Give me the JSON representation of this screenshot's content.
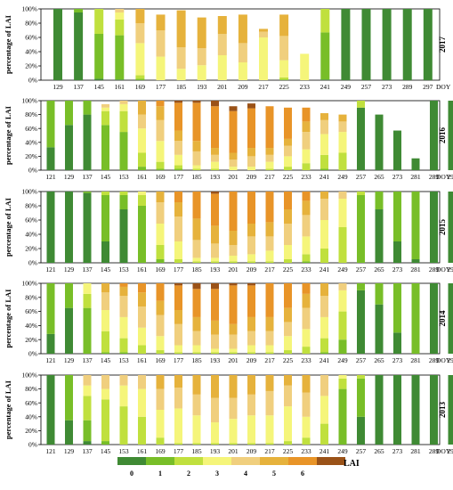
{
  "legend": {
    "colors": [
      "#3f8a34",
      "#78be28",
      "#c0e03e",
      "#f5f57a",
      "#f0cf7e",
      "#e6b23c",
      "#e89428",
      "#9a5218"
    ],
    "labels": [
      "0",
      "1",
      "2",
      "3",
      "4",
      "5",
      "6"
    ],
    "title": "LAI"
  },
  "chart_data": [
    {
      "type": "bar",
      "stacked": true,
      "year": "2017",
      "ylabel": "percentage of LAI",
      "xlabel": "DOY",
      "ylim": [
        0,
        100
      ],
      "yticks": [
        "0%",
        "20%",
        "40%",
        "60%",
        "80%",
        "100%"
      ],
      "categories": [
        "129",
        "137",
        "145",
        "161",
        "169",
        "177",
        "185",
        "193",
        "201",
        "209",
        "217",
        "225",
        "233",
        "241",
        "249",
        "257",
        "273",
        "289",
        "297"
      ],
      "series": [
        {
          "values": [
            100,
            95,
            2,
            1,
            0,
            0,
            0,
            0,
            0,
            0,
            0,
            0,
            0,
            1,
            100,
            100,
            100,
            100,
            100
          ]
        },
        {
          "values": [
            0,
            5,
            63,
            62,
            2,
            0,
            0,
            0,
            0,
            0,
            0,
            1,
            0,
            66,
            0,
            0,
            0,
            0,
            0
          ]
        },
        {
          "values": [
            0,
            0,
            35,
            22,
            5,
            0,
            0,
            0,
            0,
            0,
            0,
            3,
            0,
            33,
            0,
            0,
            0,
            0,
            0
          ]
        },
        {
          "values": [
            0,
            0,
            0,
            10,
            45,
            33,
            16,
            21,
            35,
            25,
            60,
            24,
            37,
            0,
            0,
            0,
            0,
            0,
            0
          ]
        },
        {
          "values": [
            0,
            0,
            0,
            5,
            28,
            37,
            30,
            24,
            30,
            27,
            8,
            34,
            0,
            0,
            0,
            0,
            0,
            0,
            0
          ]
        },
        {
          "values": [
            0,
            0,
            0,
            0,
            20,
            22,
            52,
            43,
            25,
            40,
            4,
            30,
            0,
            0,
            0,
            0,
            0,
            0,
            0
          ]
        },
        {
          "values": [
            0,
            0,
            0,
            0,
            0,
            0,
            0,
            0,
            0,
            0,
            0,
            0,
            0,
            0,
            0,
            0,
            0,
            0,
            0
          ]
        },
        {
          "values": [
            0,
            0,
            0,
            0,
            0,
            0,
            0,
            0,
            0,
            0,
            0,
            0,
            0,
            0,
            0,
            0,
            0,
            0,
            0
          ]
        }
      ],
      "top_white": [
        0,
        0,
        0,
        0,
        10,
        8,
        2,
        12,
        10,
        8,
        28,
        8,
        13,
        0,
        0,
        0,
        0,
        0,
        0
      ]
    },
    {
      "type": "bar",
      "stacked": true,
      "year": "2016",
      "ylabel": "percentage of LAI",
      "xlabel": "DOY",
      "ylim": [
        0,
        100
      ],
      "yticks": [
        "0%",
        "20%",
        "40%",
        "60%",
        "80%",
        "100%"
      ],
      "categories": [
        "121",
        "129",
        "137",
        "145",
        "153",
        "161",
        "169",
        "177",
        "185",
        "193",
        "201",
        "209",
        "217",
        "225",
        "233",
        "241",
        "249",
        "257",
        "265",
        "273",
        "281",
        "289",
        "297"
      ],
      "series": [
        {
          "values": [
            33,
            65,
            80,
            0,
            0,
            0,
            0,
            0,
            0,
            0,
            0,
            0,
            0,
            0,
            0,
            0,
            0,
            90,
            80,
            57,
            17,
            100,
            100
          ]
        },
        {
          "values": [
            67,
            35,
            20,
            65,
            55,
            5,
            2,
            2,
            0,
            0,
            0,
            0,
            0,
            0,
            0,
            2,
            0,
            0,
            0,
            0,
            0,
            0,
            0
          ]
        },
        {
          "values": [
            0,
            0,
            0,
            20,
            30,
            20,
            10,
            5,
            2,
            2,
            0,
            0,
            2,
            5,
            10,
            20,
            25,
            10,
            0,
            0,
            0,
            0,
            0
          ]
        },
        {
          "values": [
            0,
            0,
            0,
            5,
            10,
            35,
            30,
            15,
            5,
            10,
            5,
            5,
            10,
            15,
            20,
            30,
            30,
            0,
            0,
            0,
            0,
            0,
            0
          ]
        },
        {
          "values": [
            0,
            0,
            0,
            5,
            5,
            20,
            30,
            20,
            20,
            10,
            10,
            15,
            10,
            15,
            25,
            20,
            15,
            0,
            0,
            0,
            0,
            0,
            0
          ]
        },
        {
          "values": [
            0,
            0,
            0,
            0,
            0,
            20,
            20,
            15,
            15,
            10,
            10,
            12,
            10,
            10,
            15,
            10,
            10,
            0,
            0,
            0,
            0,
            0,
            0
          ]
        },
        {
          "values": [
            0,
            0,
            0,
            0,
            0,
            0,
            8,
            40,
            55,
            60,
            60,
            57,
            60,
            45,
            20,
            0,
            0,
            0,
            0,
            0,
            0,
            0,
            0
          ]
        },
        {
          "values": [
            0,
            0,
            0,
            0,
            0,
            0,
            0,
            3,
            3,
            8,
            7,
            7,
            0,
            0,
            0,
            0,
            0,
            0,
            0,
            0,
            0,
            0,
            0
          ]
        }
      ]
    },
    {
      "type": "bar",
      "stacked": true,
      "year": "2015",
      "ylabel": "percentage of LAI",
      "xlabel": "DOY",
      "ylim": [
        0,
        100
      ],
      "yticks": [
        "0%",
        "20%",
        "40%",
        "60%",
        "80%",
        "100%"
      ],
      "categories": [
        "121",
        "129",
        "137",
        "145",
        "153",
        "161",
        "169",
        "177",
        "185",
        "193",
        "201",
        "209",
        "217",
        "225",
        "233",
        "241",
        "249",
        "257",
        "265",
        "273",
        "281",
        "289",
        "297"
      ],
      "series": [
        {
          "values": [
            100,
            100,
            98,
            30,
            75,
            0,
            0,
            0,
            0,
            0,
            0,
            0,
            0,
            0,
            0,
            0,
            0,
            0,
            75,
            30,
            5,
            100,
            100
          ]
        },
        {
          "values": [
            0,
            0,
            2,
            65,
            20,
            80,
            5,
            0,
            0,
            0,
            0,
            0,
            0,
            0,
            2,
            0,
            0,
            95,
            25,
            70,
            95,
            0,
            0
          ]
        },
        {
          "values": [
            0,
            0,
            0,
            5,
            5,
            15,
            20,
            5,
            2,
            2,
            2,
            2,
            2,
            5,
            10,
            20,
            50,
            5,
            0,
            0,
            0,
            0,
            0
          ]
        },
        {
          "values": [
            0,
            0,
            0,
            0,
            0,
            5,
            30,
            25,
            5,
            5,
            8,
            10,
            15,
            20,
            25,
            40,
            40,
            0,
            0,
            0,
            0,
            0,
            0
          ]
        },
        {
          "values": [
            0,
            0,
            0,
            0,
            0,
            0,
            30,
            35,
            25,
            20,
            15,
            25,
            20,
            30,
            30,
            30,
            10,
            0,
            0,
            0,
            0,
            0,
            0
          ]
        },
        {
          "values": [
            0,
            0,
            0,
            0,
            0,
            0,
            15,
            20,
            30,
            25,
            20,
            18,
            20,
            20,
            20,
            10,
            0,
            0,
            0,
            0,
            0,
            0,
            0
          ]
        },
        {
          "values": [
            0,
            0,
            0,
            0,
            0,
            0,
            0,
            15,
            38,
            45,
            55,
            45,
            43,
            25,
            13,
            0,
            0,
            0,
            0,
            0,
            0,
            0,
            0
          ]
        },
        {
          "values": [
            0,
            0,
            0,
            0,
            0,
            0,
            0,
            0,
            0,
            3,
            0,
            0,
            0,
            0,
            0,
            0,
            0,
            0,
            0,
            0,
            0,
            0,
            0
          ]
        }
      ]
    },
    {
      "type": "bar",
      "stacked": true,
      "year": "2014",
      "ylabel": "percentage of LAI",
      "xlabel": "DOY",
      "ylim": [
        0,
        100
      ],
      "yticks": [
        "0%",
        "20%",
        "40%",
        "60%",
        "80%",
        "100%"
      ],
      "categories": [
        "121",
        "129",
        "137",
        "145",
        "153",
        "161",
        "169",
        "177",
        "185",
        "193",
        "201",
        "209",
        "217",
        "225",
        "233",
        "241",
        "249",
        "257",
        "265",
        "273",
        "281",
        "289",
        "297"
      ],
      "series": [
        {
          "values": [
            28,
            65,
            0,
            0,
            0,
            0,
            0,
            0,
            0,
            0,
            0,
            0,
            0,
            0,
            0,
            0,
            0,
            90,
            70,
            30,
            0,
            100,
            100
          ]
        },
        {
          "values": [
            72,
            35,
            65,
            2,
            2,
            0,
            0,
            0,
            0,
            0,
            0,
            0,
            0,
            0,
            0,
            2,
            20,
            10,
            30,
            70,
            100,
            0,
            0
          ]
        },
        {
          "values": [
            0,
            0,
            20,
            30,
            20,
            12,
            5,
            2,
            2,
            2,
            2,
            2,
            2,
            5,
            10,
            20,
            40,
            0,
            0,
            0,
            0,
            0,
            0
          ]
        },
        {
          "values": [
            0,
            0,
            15,
            30,
            30,
            25,
            20,
            10,
            10,
            5,
            5,
            10,
            10,
            20,
            25,
            30,
            30,
            0,
            0,
            0,
            0,
            0,
            0
          ]
        },
        {
          "values": [
            0,
            0,
            0,
            25,
            30,
            30,
            30,
            30,
            20,
            20,
            20,
            20,
            20,
            20,
            30,
            30,
            10,
            0,
            0,
            0,
            0,
            0,
            0
          ]
        },
        {
          "values": [
            0,
            0,
            0,
            13,
            13,
            20,
            20,
            20,
            20,
            20,
            15,
            20,
            20,
            20,
            20,
            18,
            0,
            0,
            0,
            0,
            0,
            0,
            0
          ]
        },
        {
          "values": [
            0,
            0,
            0,
            0,
            5,
            13,
            25,
            35,
            40,
            45,
            55,
            45,
            48,
            35,
            15,
            0,
            0,
            0,
            0,
            0,
            0,
            0,
            0
          ]
        },
        {
          "values": [
            0,
            0,
            0,
            0,
            0,
            0,
            0,
            3,
            8,
            8,
            3,
            3,
            0,
            0,
            0,
            0,
            0,
            0,
            0,
            0,
            0,
            0,
            0
          ]
        }
      ]
    },
    {
      "type": "bar",
      "stacked": true,
      "year": "2013",
      "ylabel": "percentage of LAI",
      "xlabel": "DOY",
      "ylim": [
        0,
        100
      ],
      "yticks": [
        "0%",
        "20%",
        "40%",
        "60%",
        "80%",
        "100%"
      ],
      "categories": [
        "121",
        "129",
        "137",
        "145",
        "153",
        "161",
        "169",
        "177",
        "185",
        "193",
        "201",
        "209",
        "217",
        "225",
        "233",
        "241",
        "249",
        "257",
        "265",
        "273",
        "281",
        "289",
        "297"
      ],
      "series": [
        {
          "values": [
            100,
            35,
            5,
            0,
            0,
            0,
            0,
            0,
            0,
            0,
            0,
            0,
            0,
            0,
            0,
            0,
            0,
            40,
            100,
            100,
            100,
            100,
            100
          ]
        },
        {
          "values": [
            0,
            65,
            30,
            5,
            0,
            0,
            0,
            0,
            0,
            0,
            0,
            0,
            0,
            0,
            0,
            0,
            80,
            55,
            0,
            0,
            0,
            0,
            0
          ]
        },
        {
          "values": [
            0,
            0,
            35,
            60,
            55,
            40,
            10,
            2,
            2,
            2,
            2,
            2,
            2,
            5,
            10,
            30,
            15,
            5,
            0,
            0,
            0,
            0,
            0
          ]
        },
        {
          "values": [
            0,
            0,
            15,
            15,
            30,
            40,
            40,
            50,
            40,
            30,
            35,
            40,
            40,
            50,
            30,
            40,
            5,
            0,
            0,
            0,
            0,
            0,
            0
          ]
        },
        {
          "values": [
            0,
            0,
            15,
            20,
            15,
            20,
            30,
            30,
            30,
            35,
            30,
            30,
            35,
            30,
            35,
            30,
            0,
            0,
            0,
            0,
            0,
            0,
            0
          ]
        },
        {
          "values": [
            0,
            0,
            0,
            0,
            0,
            0,
            20,
            18,
            28,
            33,
            33,
            28,
            23,
            15,
            25,
            0,
            0,
            0,
            0,
            0,
            0,
            0,
            0
          ]
        },
        {
          "values": [
            0,
            0,
            0,
            0,
            0,
            0,
            0,
            0,
            0,
            0,
            0,
            0,
            0,
            0,
            0,
            0,
            0,
            0,
            0,
            0,
            0,
            0,
            0
          ]
        },
        {
          "values": [
            0,
            0,
            0,
            0,
            0,
            0,
            0,
            0,
            0,
            0,
            0,
            0,
            0,
            0,
            0,
            0,
            0,
            0,
            0,
            0,
            0,
            0,
            0
          ]
        }
      ]
    }
  ]
}
